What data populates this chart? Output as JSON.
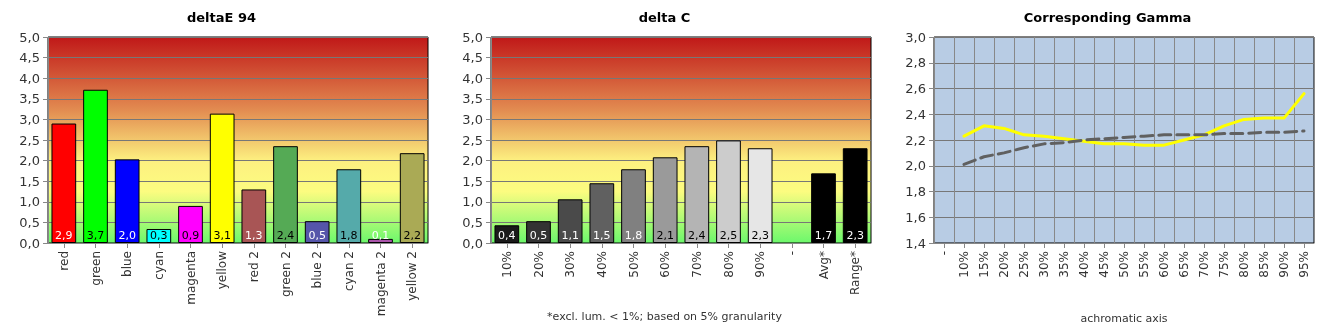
{
  "chart_data": [
    {
      "type": "bar",
      "title": "deltaE 94",
      "categories": [
        "red",
        "green",
        "blue",
        "cyan",
        "magenta",
        "yellow",
        "red 2",
        "green 2",
        "blue 2",
        "cyan 2",
        "magenta 2",
        "yellow 2"
      ],
      "series": [
        {
          "values": [
            2.9,
            3.72,
            2.03,
            0.34,
            0.9,
            3.14,
            1.3,
            2.35,
            0.53,
            1.79,
            0.1,
            2.18
          ],
          "colors": [
            "#ff0000",
            "#00ff00",
            "#0000ff",
            "#00ffff",
            "#ff00ff",
            "#ffff00",
            "#a85555",
            "#55aa55",
            "#5555aa",
            "#55aaaa",
            "#aa55aa",
            "#aaaa55"
          ],
          "value_labels": [
            "2,9",
            "3,7",
            "2,0",
            "0,3",
            "0,9",
            "3,1",
            "1,3",
            "2,4",
            "0,5",
            "1,8",
            "0,1",
            "2,2"
          ]
        }
      ],
      "ylim": [
        0,
        5
      ],
      "yticks": [
        {
          "value": 0,
          "label": "0,0"
        },
        {
          "value": 0.5,
          "label": "0,5"
        },
        {
          "value": 1,
          "label": "1,0"
        },
        {
          "value": 1.5,
          "label": "1,5"
        },
        {
          "value": 2,
          "label": "2,0"
        },
        {
          "value": 2.5,
          "label": "2,5"
        },
        {
          "value": 3,
          "label": "3,0"
        },
        {
          "value": 3.5,
          "label": "3,5"
        },
        {
          "value": 4,
          "label": "4,0"
        },
        {
          "value": 4.5,
          "label": "4,5"
        },
        {
          "value": 5,
          "label": "5,0"
        }
      ],
      "grid": "y"
    },
    {
      "type": "bar",
      "title": "delta C",
      "categories": [
        "10%",
        "20%",
        "30%",
        "40%",
        "50%",
        "60%",
        "70%",
        "80%",
        "90%",
        "-",
        "Avg*",
        "Range*"
      ],
      "series": [
        {
          "values": [
            0.43,
            0.53,
            1.06,
            1.45,
            1.79,
            2.08,
            2.35,
            2.49,
            2.3,
            null,
            1.69,
            2.3
          ],
          "colors": [
            "#1a1a1a",
            "#333333",
            "#4a4a4a",
            "#606060",
            "#808080",
            "#9a9a9a",
            "#b4b4b4",
            "#cccccc",
            "#e6e6e6",
            null,
            "#000000",
            "#000000"
          ],
          "value_labels": [
            "0,4",
            "0,5",
            "1,1",
            "1,5",
            "1,8",
            "2,1",
            "2,4",
            "2,5",
            "2,3",
            null,
            "1,7",
            "2,3"
          ]
        }
      ],
      "ylim": [
        0,
        5
      ],
      "yticks": [
        {
          "value": 0,
          "label": "0,0"
        },
        {
          "value": 0.5,
          "label": "0,5"
        },
        {
          "value": 1,
          "label": "1,0"
        },
        {
          "value": 1.5,
          "label": "1,5"
        },
        {
          "value": 2,
          "label": "2,0"
        },
        {
          "value": 2.5,
          "label": "2,5"
        },
        {
          "value": 3,
          "label": "3,0"
        },
        {
          "value": 3.5,
          "label": "3,5"
        },
        {
          "value": 4,
          "label": "4,0"
        },
        {
          "value": 4.5,
          "label": "4,5"
        },
        {
          "value": 5,
          "label": "5,0"
        }
      ],
      "grid": "y",
      "annotations": [
        "*excl. lum. < 1%; based on 5% granularity"
      ]
    },
    {
      "type": "line",
      "title": "Corresponding Gamma",
      "xlabel": "achromatic axis",
      "categories": [
        "-",
        "10%",
        "15%",
        "20%",
        "25%",
        "30%",
        "35%",
        "40%",
        "45%",
        "50%",
        "55%",
        "60%",
        "65%",
        "70%",
        "75%",
        "80%",
        "85%",
        "90%",
        "95%"
      ],
      "series": [
        {
          "color": "#ffff00",
          "line_style": "solid",
          "values": [
            null,
            2.23,
            2.31,
            2.29,
            2.24,
            2.23,
            2.21,
            2.19,
            2.17,
            2.17,
            2.16,
            2.16,
            2.2,
            2.24,
            2.31,
            2.36,
            2.37,
            2.37,
            2.56
          ]
        },
        {
          "color": "#606060",
          "line_style": "dashed",
          "values": [
            null,
            2.01,
            2.07,
            2.1,
            2.14,
            2.17,
            2.18,
            2.2,
            2.21,
            2.22,
            2.23,
            2.24,
            2.24,
            2.24,
            2.25,
            2.25,
            2.26,
            2.26,
            2.27
          ]
        }
      ],
      "ylim": [
        1.4,
        3.0
      ],
      "yticks": [
        {
          "value": 1.4,
          "label": "1,4"
        },
        {
          "value": 1.6,
          "label": "1,6"
        },
        {
          "value": 1.8,
          "label": "1,8"
        },
        {
          "value": 2,
          "label": "2,0"
        },
        {
          "value": 2.2,
          "label": "2,2"
        },
        {
          "value": 2.4,
          "label": "2,4"
        },
        {
          "value": 2.6,
          "label": "2,6"
        },
        {
          "value": 2.8,
          "label": "2,8"
        },
        {
          "value": 3,
          "label": "3,0"
        }
      ],
      "grid": true,
      "marker": "none"
    }
  ]
}
